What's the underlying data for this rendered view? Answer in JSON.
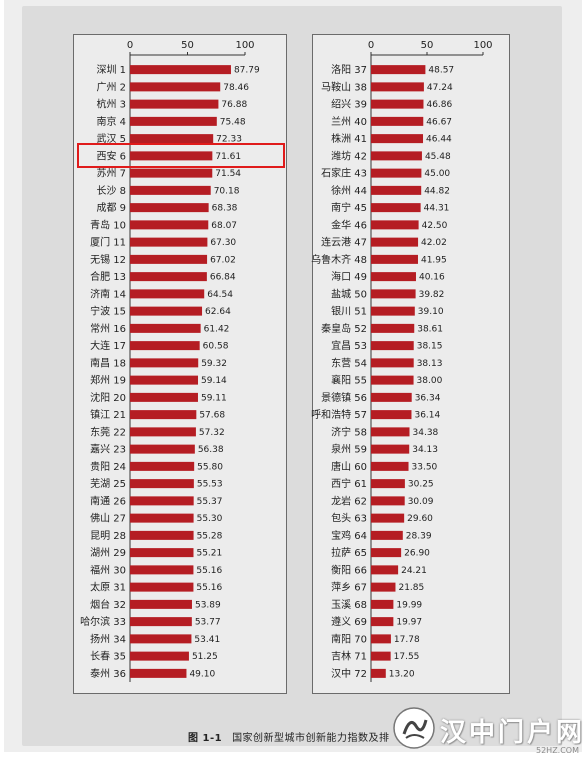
{
  "caption": {
    "figure_no": "图 1-1",
    "text": "国家创新型城市创新能力指数及排"
  },
  "highlight_city": "西安 6",
  "watermark": {
    "text": "汉中门户网",
    "url": "52HZ.COM"
  },
  "colors": {
    "bar": "#b51d23",
    "highlight": "#e01b1b",
    "panel_bg": "#ececec"
  },
  "chart_data": [
    {
      "type": "bar",
      "orientation": "horizontal",
      "xlim": [
        0,
        100
      ],
      "ticks": [
        0,
        50,
        100
      ],
      "grid": false,
      "categories": [
        "深圳 1",
        "广州 2",
        "杭州 3",
        "南京 4",
        "武汉 5",
        "西安 6",
        "苏州 7",
        "长沙 8",
        "成都 9",
        "青岛 10",
        "厦门 11",
        "无锡 12",
        "合肥 13",
        "济南 14",
        "宁波 15",
        "常州 16",
        "大连 17",
        "南昌 18",
        "郑州 19",
        "沈阳 20",
        "镇江 21",
        "东莞 22",
        "嘉兴 23",
        "贵阳 24",
        "芜湖 25",
        "南通 26",
        "佛山 27",
        "昆明 28",
        "湖州 29",
        "福州 30",
        "太原 31",
        "烟台 32",
        "哈尔滨 33",
        "扬州 34",
        "长春 35",
        "泰州 36"
      ],
      "value_labels": [
        "87.79",
        "78.46",
        "76.88",
        "75.48",
        "72.33",
        "71.61",
        "71.54",
        "70.18",
        "68.38",
        "68.07",
        "67.30",
        "67.02",
        "66.84",
        "64.54",
        "62.64",
        "61.42",
        "60.58",
        "59.32",
        "59.14",
        "59.11",
        "57.68",
        "57.32",
        "56.38",
        "55.80",
        "55.53",
        "55.37",
        "55.30",
        "55.28",
        "55.21",
        "55.16",
        "55.16",
        "53.89",
        "53.77",
        "53.41",
        "51.25",
        "49.10"
      ]
    },
    {
      "type": "bar",
      "orientation": "horizontal",
      "xlim": [
        0,
        100
      ],
      "ticks": [
        0,
        50,
        100
      ],
      "grid": false,
      "categories": [
        "洛阳 37",
        "马鞍山 38",
        "绍兴 39",
        "兰州 40",
        "株洲 41",
        "潍坊 42",
        "石家庄 43",
        "徐州 44",
        "南宁 45",
        "金华 46",
        "连云港 47",
        "乌鲁木齐 48",
        "海口 49",
        "盐城 50",
        "银川 51",
        "秦皇岛 52",
        "宜昌 53",
        "东营 54",
        "襄阳 55",
        "景德镇 56",
        "呼和浩特 57",
        "济宁 58",
        "泉州 59",
        "唐山 60",
        "西宁 61",
        "龙岩 62",
        "包头 63",
        "宝鸡 64",
        "拉萨 65",
        "衡阳 66",
        "萍乡 67",
        "玉溪 68",
        "遵义 69",
        "南阳 70",
        "吉林 71",
        "汉中 72"
      ],
      "value_labels": [
        "48.57",
        "47.24",
        "46.86",
        "46.67",
        "46.44",
        "45.48",
        "45.00",
        "44.82",
        "44.31",
        "42.50",
        "42.02",
        "41.95",
        "40.16",
        "39.82",
        "39.10",
        "38.61",
        "38.15",
        "38.13",
        "38.00",
        "36.34",
        "36.14",
        "34.38",
        "34.13",
        "33.50",
        "30.25",
        "30.09",
        "29.60",
        "28.39",
        "26.90",
        "24.21",
        "21.85",
        "19.99",
        "19.97",
        "17.78",
        "17.55",
        "13.20"
      ]
    }
  ]
}
